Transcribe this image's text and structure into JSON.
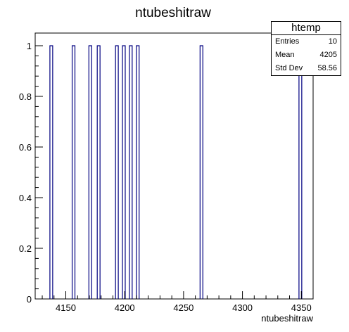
{
  "chart_data": {
    "type": "bar",
    "title": "ntubeshitraw",
    "xlabel": "ntubeshitraw",
    "ylabel": "",
    "xlim": [
      4124,
      4360
    ],
    "ylim": [
      0,
      1.05
    ],
    "bin_width": 2.36,
    "x_ticks": [
      4150,
      4200,
      4250,
      4300,
      4350
    ],
    "y_ticks": [
      0,
      0.2,
      0.4,
      0.6,
      0.8,
      1
    ],
    "y_tick_labels": [
      "0",
      "0.2",
      "0.4",
      "0.6",
      "0.8",
      "1"
    ],
    "x_tick_labels": [
      "4150",
      "4200",
      "4250",
      "4300",
      "4350"
    ],
    "bins": [
      {
        "x": 4136.5,
        "value": 1
      },
      {
        "x": 4155.4,
        "value": 1
      },
      {
        "x": 4169.6,
        "value": 1
      },
      {
        "x": 4176.7,
        "value": 1
      },
      {
        "x": 4192.2,
        "value": 1
      },
      {
        "x": 4198.1,
        "value": 1
      },
      {
        "x": 4204.0,
        "value": 1
      },
      {
        "x": 4209.9,
        "value": 1
      },
      {
        "x": 4264.0,
        "value": 1
      },
      {
        "x": 4348.0,
        "value": 1
      }
    ],
    "line_color": "#000080",
    "grid": false,
    "stats_box": {
      "title": "htemp",
      "rows": [
        {
          "label": "Entries",
          "value": "10"
        },
        {
          "label": "Mean",
          "value": "4205"
        },
        {
          "label": "Std Dev",
          "value": "58.56"
        }
      ],
      "placement": "top-right"
    }
  }
}
